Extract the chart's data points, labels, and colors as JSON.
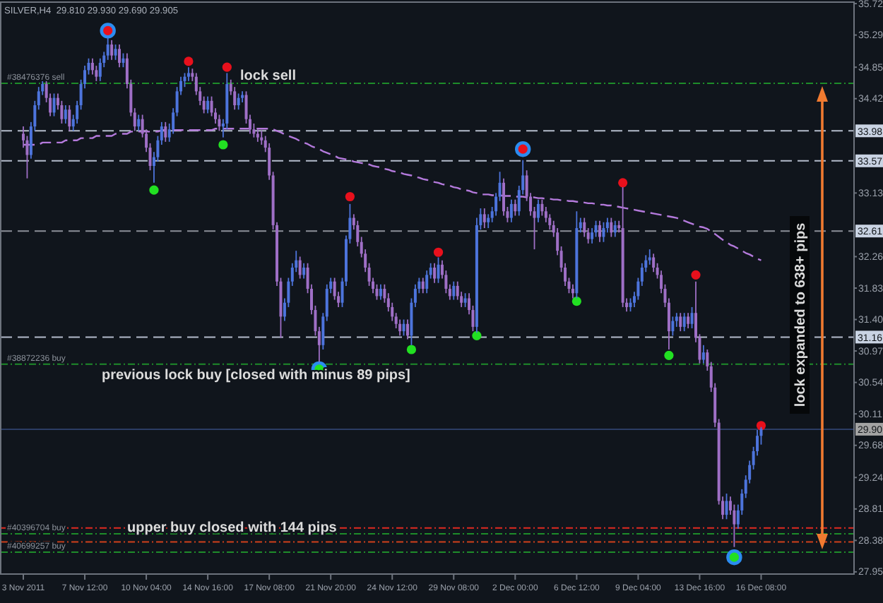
{
  "chart_data": {
    "type": "candlestick",
    "title": "SILVER,H4  29.810 29.930 29.690 29.905",
    "categories": [
      "3 Nov 2011",
      null,
      null,
      null,
      null,
      null,
      null,
      null,
      null,
      null,
      null,
      null,
      null,
      null,
      null,
      null,
      "7 Nov 12:00",
      null,
      null,
      null,
      null,
      null,
      null,
      null,
      null,
      null,
      null,
      null,
      null,
      null,
      null,
      null,
      "10 Nov 04:00",
      null,
      null,
      null,
      null,
      null,
      null,
      null,
      null,
      null,
      null,
      null,
      null,
      null,
      null,
      null,
      "14 Nov 16:00",
      null,
      null,
      null,
      null,
      null,
      null,
      null,
      null,
      null,
      null,
      null,
      null,
      null,
      null,
      null,
      "17 Nov 08:00",
      null,
      null,
      null,
      null,
      null,
      null,
      null,
      null,
      null,
      null,
      null,
      null,
      null,
      null,
      null,
      "21 Nov 20:00",
      null,
      null,
      null,
      null,
      null,
      null,
      null,
      null,
      null,
      null,
      null,
      null,
      null,
      null,
      null,
      "24 Nov 12:00",
      null,
      null,
      null,
      null,
      null,
      null,
      null,
      null,
      null,
      null,
      null,
      null,
      null,
      null,
      null,
      "29 Nov 08:00",
      null,
      null,
      null,
      null,
      null,
      null,
      null,
      null,
      null,
      null,
      null,
      null,
      null,
      null,
      null,
      "2 Dec 00:00",
      null,
      null,
      null,
      null,
      null,
      null,
      null,
      null,
      null,
      null,
      null,
      null,
      null,
      null,
      null,
      "6 Dec 12:00",
      null,
      null,
      null,
      null,
      null,
      null,
      null,
      null,
      null,
      null,
      null,
      null,
      null,
      null,
      null,
      "9 Dec 04:00",
      null,
      null,
      null,
      null,
      null,
      null,
      null,
      null,
      null,
      null,
      null,
      null,
      null,
      null,
      null,
      "13 Dec 16:00",
      null,
      null,
      null,
      null,
      null,
      null,
      null,
      null,
      null,
      null,
      null,
      null,
      null,
      null,
      null,
      "16 Dec 08:00"
    ],
    "ohlc": [
      [
        33.94,
        34.04,
        33.75,
        33.85
      ],
      [
        33.85,
        33.91,
        33.33,
        33.65
      ],
      [
        33.65,
        34.1,
        33.6,
        34.04
      ],
      [
        34.04,
        34.39,
        33.98,
        34.33
      ],
      [
        34.33,
        34.58,
        34.27,
        34.52
      ],
      [
        34.52,
        34.68,
        34.47,
        34.62
      ],
      [
        34.62,
        34.68,
        34.37,
        34.43
      ],
      [
        34.43,
        34.49,
        34.18,
        34.23
      ],
      [
        34.23,
        34.49,
        34.18,
        34.43
      ],
      [
        34.43,
        34.49,
        34.27,
        34.33
      ],
      [
        34.33,
        34.39,
        34.08,
        34.14
      ],
      [
        34.14,
        34.33,
        34.08,
        34.27
      ],
      [
        34.27,
        34.33,
        33.98,
        34.04
      ],
      [
        34.04,
        34.2,
        33.98,
        34.14
      ],
      [
        34.14,
        34.39,
        34.08,
        34.33
      ],
      [
        34.33,
        34.68,
        34.27,
        34.62
      ],
      [
        34.62,
        34.87,
        34.56,
        34.81
      ],
      [
        34.81,
        34.97,
        34.75,
        34.91
      ],
      [
        34.91,
        34.97,
        34.75,
        34.81
      ],
      [
        34.81,
        34.87,
        34.66,
        34.72
      ],
      [
        34.72,
        34.97,
        34.66,
        34.91
      ],
      [
        34.91,
        35.06,
        34.85,
        35.01
      ],
      [
        35.01,
        35.26,
        34.95,
        35.16
      ],
      [
        35.16,
        35.22,
        34.95,
        35.01
      ],
      [
        35.01,
        35.16,
        34.95,
        35.1
      ],
      [
        35.1,
        35.16,
        34.85,
        34.91
      ],
      [
        34.91,
        35.04,
        34.85,
        34.97
      ],
      [
        34.97,
        35.04,
        34.56,
        34.62
      ],
      [
        34.62,
        34.68,
        34.18,
        34.23
      ],
      [
        34.23,
        34.29,
        33.98,
        34.04
      ],
      [
        34.04,
        34.2,
        33.98,
        34.14
      ],
      [
        34.14,
        34.2,
        33.89,
        33.94
      ],
      [
        33.94,
        34.0,
        33.69,
        33.75
      ],
      [
        33.75,
        33.81,
        33.44,
        33.5
      ],
      [
        33.5,
        33.69,
        33.27,
        33.62
      ],
      [
        33.62,
        33.91,
        33.56,
        33.85
      ],
      [
        33.85,
        34.1,
        33.79,
        34.04
      ],
      [
        34.04,
        34.1,
        33.83,
        33.89
      ],
      [
        33.89,
        34.08,
        33.83,
        34.0
      ],
      [
        34.0,
        34.29,
        33.94,
        34.23
      ],
      [
        34.23,
        34.58,
        34.18,
        34.52
      ],
      [
        34.52,
        34.72,
        34.47,
        34.66
      ],
      [
        34.66,
        34.77,
        34.58,
        34.72
      ],
      [
        34.72,
        34.85,
        34.66,
        34.77
      ],
      [
        34.77,
        34.83,
        34.66,
        34.72
      ],
      [
        34.72,
        34.77,
        34.47,
        34.52
      ],
      [
        34.52,
        34.58,
        34.33,
        34.39
      ],
      [
        34.39,
        34.45,
        34.22,
        34.27
      ],
      [
        34.27,
        34.45,
        34.22,
        34.39
      ],
      [
        34.39,
        34.45,
        34.18,
        34.23
      ],
      [
        34.23,
        34.29,
        34.08,
        34.14
      ],
      [
        34.14,
        34.2,
        33.98,
        34.04
      ],
      [
        34.04,
        34.14,
        33.89,
        34.08
      ],
      [
        34.08,
        34.77,
        34.0,
        34.62
      ],
      [
        34.62,
        34.68,
        34.47,
        34.52
      ],
      [
        34.52,
        34.58,
        34.27,
        34.33
      ],
      [
        34.33,
        34.49,
        34.27,
        34.43
      ],
      [
        34.43,
        34.52,
        34.37,
        34.47
      ],
      [
        34.47,
        34.52,
        34.08,
        34.14
      ],
      [
        34.14,
        34.2,
        33.94,
        34.0
      ],
      [
        34.0,
        34.08,
        33.89,
        33.94
      ],
      [
        33.94,
        34.0,
        33.83,
        33.89
      ],
      [
        33.89,
        33.98,
        33.79,
        33.85
      ],
      [
        33.85,
        33.91,
        33.69,
        33.75
      ],
      [
        33.75,
        33.81,
        33.31,
        33.37
      ],
      [
        33.37,
        33.42,
        32.63,
        32.69
      ],
      [
        32.69,
        32.73,
        31.86,
        31.92
      ],
      [
        31.92,
        31.97,
        31.15,
        31.44
      ],
      [
        31.44,
        31.69,
        31.38,
        31.63
      ],
      [
        31.63,
        31.97,
        31.57,
        31.92
      ],
      [
        31.92,
        32.17,
        31.86,
        32.11
      ],
      [
        32.11,
        32.34,
        32.05,
        32.21
      ],
      [
        32.21,
        32.26,
        31.96,
        32.01
      ],
      [
        32.01,
        32.17,
        31.96,
        32.11
      ],
      [
        32.11,
        32.17,
        31.76,
        31.82
      ],
      [
        31.82,
        31.88,
        31.47,
        31.53
      ],
      [
        31.53,
        31.59,
        31.18,
        31.24
      ],
      [
        31.24,
        31.3,
        30.82,
        31.05
      ],
      [
        31.05,
        31.49,
        30.99,
        31.44
      ],
      [
        31.44,
        31.88,
        31.38,
        31.82
      ],
      [
        31.82,
        31.97,
        31.76,
        31.92
      ],
      [
        31.92,
        31.97,
        31.67,
        31.72
      ],
      [
        31.72,
        31.78,
        31.57,
        31.63
      ],
      [
        31.63,
        31.97,
        31.57,
        31.92
      ],
      [
        31.92,
        32.55,
        31.86,
        32.5
      ],
      [
        32.5,
        32.98,
        32.44,
        32.79
      ],
      [
        32.79,
        32.84,
        32.63,
        32.69
      ],
      [
        32.69,
        32.75,
        32.4,
        32.46
      ],
      [
        32.46,
        32.53,
        32.25,
        32.3
      ],
      [
        32.3,
        32.36,
        32.05,
        32.11
      ],
      [
        32.11,
        32.17,
        31.86,
        31.92
      ],
      [
        31.92,
        31.97,
        31.76,
        31.82
      ],
      [
        31.82,
        31.88,
        31.67,
        31.72
      ],
      [
        31.72,
        31.88,
        31.67,
        31.82
      ],
      [
        31.82,
        31.88,
        31.63,
        31.69
      ],
      [
        31.69,
        31.76,
        31.51,
        31.57
      ],
      [
        31.57,
        31.63,
        31.38,
        31.44
      ],
      [
        31.44,
        31.49,
        31.28,
        31.34
      ],
      [
        31.34,
        31.4,
        31.18,
        31.24
      ],
      [
        31.24,
        31.4,
        31.18,
        31.34
      ],
      [
        31.34,
        31.4,
        31.13,
        31.18
      ],
      [
        31.18,
        31.69,
        31.05,
        31.63
      ],
      [
        31.63,
        31.88,
        31.57,
        31.82
      ],
      [
        31.82,
        31.97,
        31.76,
        31.92
      ],
      [
        31.92,
        31.97,
        31.76,
        31.82
      ],
      [
        31.82,
        32.07,
        31.76,
        32.01
      ],
      [
        32.01,
        32.17,
        31.96,
        32.11
      ],
      [
        32.11,
        32.17,
        31.9,
        31.96
      ],
      [
        31.96,
        32.25,
        31.9,
        32.15
      ],
      [
        32.15,
        32.21,
        31.96,
        32.01
      ],
      [
        32.01,
        32.07,
        31.76,
        31.82
      ],
      [
        31.82,
        31.88,
        31.67,
        31.72
      ],
      [
        31.72,
        31.92,
        31.67,
        31.86
      ],
      [
        31.86,
        31.92,
        31.67,
        31.72
      ],
      [
        31.72,
        31.78,
        31.57,
        31.63
      ],
      [
        31.63,
        31.76,
        31.57,
        31.69
      ],
      [
        31.69,
        31.76,
        31.47,
        31.53
      ],
      [
        31.53,
        31.59,
        31.24,
        31.3
      ],
      [
        31.3,
        32.79,
        31.22,
        32.69
      ],
      [
        32.69,
        32.92,
        32.63,
        32.84
      ],
      [
        32.84,
        32.92,
        32.65,
        32.73
      ],
      [
        32.73,
        32.84,
        32.65,
        32.79
      ],
      [
        32.79,
        32.94,
        32.73,
        32.88
      ],
      [
        32.88,
        33.13,
        32.82,
        33.08
      ],
      [
        33.08,
        33.42,
        33.02,
        33.27
      ],
      [
        33.27,
        33.33,
        32.82,
        32.88
      ],
      [
        32.88,
        32.94,
        32.73,
        32.79
      ],
      [
        32.79,
        33.04,
        32.73,
        32.98
      ],
      [
        32.98,
        33.04,
        32.82,
        32.88
      ],
      [
        32.88,
        33.23,
        32.82,
        33.17
      ],
      [
        33.17,
        33.58,
        33.11,
        33.37
      ],
      [
        33.37,
        33.44,
        33.02,
        33.08
      ],
      [
        33.08,
        33.13,
        32.82,
        32.88
      ],
      [
        32.88,
        32.94,
        32.36,
        32.79
      ],
      [
        32.79,
        33.04,
        32.73,
        32.98
      ],
      [
        32.98,
        33.04,
        32.82,
        32.88
      ],
      [
        32.88,
        32.94,
        32.73,
        32.79
      ],
      [
        32.79,
        32.84,
        32.63,
        32.69
      ],
      [
        32.69,
        32.75,
        32.53,
        32.59
      ],
      [
        32.59,
        32.65,
        32.28,
        32.34
      ],
      [
        32.34,
        32.4,
        32.05,
        32.11
      ],
      [
        32.11,
        32.17,
        31.86,
        31.92
      ],
      [
        31.92,
        31.97,
        31.76,
        31.82
      ],
      [
        31.82,
        31.88,
        31.69,
        31.76
      ],
      [
        31.76,
        32.88,
        31.69,
        32.65
      ],
      [
        32.65,
        32.79,
        32.59,
        32.73
      ],
      [
        32.73,
        32.79,
        32.53,
        32.59
      ],
      [
        32.59,
        32.65,
        32.44,
        32.5
      ],
      [
        32.5,
        32.65,
        32.44,
        32.59
      ],
      [
        32.59,
        32.75,
        32.53,
        32.69
      ],
      [
        32.69,
        32.75,
        32.46,
        32.53
      ],
      [
        32.53,
        32.73,
        32.46,
        32.65
      ],
      [
        32.65,
        32.79,
        32.59,
        32.73
      ],
      [
        32.73,
        32.79,
        32.53,
        32.59
      ],
      [
        32.59,
        32.75,
        32.53,
        32.69
      ],
      [
        32.69,
        32.75,
        32.59,
        32.65
      ],
      [
        32.65,
        33.21,
        31.57,
        31.63
      ],
      [
        31.63,
        31.69,
        31.51,
        31.57
      ],
      [
        31.57,
        31.69,
        31.51,
        31.63
      ],
      [
        31.63,
        31.78,
        31.57,
        31.72
      ],
      [
        31.72,
        31.97,
        31.67,
        31.92
      ],
      [
        31.92,
        32.17,
        31.86,
        32.11
      ],
      [
        32.11,
        32.28,
        32.05,
        32.21
      ],
      [
        32.21,
        32.36,
        32.15,
        32.25
      ],
      [
        32.25,
        32.3,
        32.05,
        32.11
      ],
      [
        32.11,
        32.17,
        31.96,
        32.01
      ],
      [
        32.01,
        32.07,
        31.76,
        31.82
      ],
      [
        31.82,
        31.88,
        31.57,
        31.63
      ],
      [
        31.63,
        31.69,
        30.99,
        31.24
      ],
      [
        31.24,
        31.44,
        31.18,
        31.38
      ],
      [
        31.38,
        31.49,
        31.3,
        31.44
      ],
      [
        31.44,
        31.49,
        31.24,
        31.3
      ],
      [
        31.3,
        31.49,
        31.24,
        31.44
      ],
      [
        31.44,
        31.49,
        31.28,
        31.34
      ],
      [
        31.34,
        31.57,
        31.28,
        31.49
      ],
      [
        31.49,
        31.92,
        31.09,
        31.15
      ],
      [
        31.15,
        31.2,
        30.8,
        30.85
      ],
      [
        30.85,
        31.05,
        30.8,
        30.95
      ],
      [
        30.95,
        30.99,
        30.7,
        30.76
      ],
      [
        30.76,
        30.82,
        30.41,
        30.47
      ],
      [
        30.47,
        30.53,
        29.93,
        29.99
      ],
      [
        29.99,
        30.04,
        28.87,
        28.92
      ],
      [
        28.92,
        28.98,
        28.67,
        28.73
      ],
      [
        28.73,
        29.02,
        28.67,
        28.92
      ],
      [
        28.92,
        28.98,
        28.73,
        28.79
      ],
      [
        28.79,
        28.87,
        28.29,
        28.6
      ],
      [
        28.6,
        28.87,
        28.54,
        28.79
      ],
      [
        28.79,
        29.08,
        28.73,
        29.02
      ],
      [
        29.02,
        29.27,
        28.96,
        29.21
      ],
      [
        29.21,
        29.47,
        29.16,
        29.41
      ],
      [
        29.41,
        29.66,
        29.35,
        29.6
      ],
      [
        29.6,
        29.89,
        29.54,
        29.81
      ],
      [
        29.81,
        29.93,
        29.69,
        29.905
      ]
    ],
    "colors": [
      "#9f6fc6",
      "#9f6fc6",
      "#4d74dc",
      "#4d74dc",
      "#4d74dc",
      "#4d74dc",
      "#9f6fc6",
      "#9f6fc6",
      "#4d74dc",
      "#9f6fc6",
      "#9f6fc6",
      "#4d74dc",
      "#9f6fc6",
      "#4d74dc",
      "#4d74dc",
      "#4d74dc",
      "#4d74dc",
      "#4d74dc",
      "#9f6fc6",
      "#9f6fc6",
      "#4d74dc",
      "#4d74dc",
      "#4d74dc",
      "#9f6fc6",
      "#4d74dc",
      "#9f6fc6",
      "#4d74dc",
      "#9f6fc6",
      "#9f6fc6",
      "#9f6fc6",
      "#4d74dc",
      "#9f6fc6",
      "#9f6fc6",
      "#9f6fc6",
      "#4d74dc",
      "#4d74dc",
      "#4d74dc",
      "#9f6fc6",
      "#4d74dc",
      "#4d74dc",
      "#4d74dc",
      "#4d74dc",
      "#4d74dc",
      "#4d74dc",
      "#9f6fc6",
      "#9f6fc6",
      "#9f6fc6",
      "#9f6fc6",
      "#4d74dc",
      "#9f6fc6",
      "#9f6fc6",
      "#9f6fc6",
      "#4d74dc",
      "#4d74dc",
      "#9f6fc6",
      "#9f6fc6",
      "#4d74dc",
      "#4d74dc",
      "#9f6fc6",
      "#9f6fc6",
      "#9f6fc6",
      "#9f6fc6",
      "#9f6fc6",
      "#9f6fc6",
      "#9f6fc6",
      "#9f6fc6",
      "#9f6fc6",
      "#9f6fc6",
      "#4d74dc",
      "#4d74dc",
      "#4d74dc",
      "#4d74dc",
      "#9f6fc6",
      "#4d74dc",
      "#9f6fc6",
      "#9f6fc6",
      "#9f6fc6",
      "#9f6fc6",
      "#4d74dc",
      "#4d74dc",
      "#4d74dc",
      "#9f6fc6",
      "#9f6fc6",
      "#4d74dc",
      "#4d74dc",
      "#4d74dc",
      "#9f6fc6",
      "#9f6fc6",
      "#9f6fc6",
      "#9f6fc6",
      "#9f6fc6",
      "#9f6fc6",
      "#9f6fc6",
      "#4d74dc",
      "#9f6fc6",
      "#9f6fc6",
      "#9f6fc6",
      "#9f6fc6",
      "#9f6fc6",
      "#4d74dc",
      "#9f6fc6",
      "#4d74dc",
      "#4d74dc",
      "#4d74dc",
      "#9f6fc6",
      "#4d74dc",
      "#4d74dc",
      "#9f6fc6",
      "#4d74dc",
      "#9f6fc6",
      "#9f6fc6",
      "#9f6fc6",
      "#4d74dc",
      "#9f6fc6",
      "#9f6fc6",
      "#4d74dc",
      "#9f6fc6",
      "#9f6fc6",
      "#4d74dc",
      "#4d74dc",
      "#9f6fc6",
      "#4d74dc",
      "#4d74dc",
      "#4d74dc",
      "#4d74dc",
      "#9f6fc6",
      "#9f6fc6",
      "#4d74dc",
      "#9f6fc6",
      "#4d74dc",
      "#4d74dc",
      "#9f6fc6",
      "#9f6fc6",
      "#9f6fc6",
      "#4d74dc",
      "#9f6fc6",
      "#9f6fc6",
      "#9f6fc6",
      "#9f6fc6",
      "#9f6fc6",
      "#9f6fc6",
      "#9f6fc6",
      "#9f6fc6",
      "#9f6fc6",
      "#4d74dc",
      "#4d74dc",
      "#9f6fc6",
      "#9f6fc6",
      "#4d74dc",
      "#4d74dc",
      "#9f6fc6",
      "#4d74dc",
      "#4d74dc",
      "#9f6fc6",
      "#4d74dc",
      "#9f6fc6",
      "#9f6fc6",
      "#9f6fc6",
      "#4d74dc",
      "#4d74dc",
      "#4d74dc",
      "#4d74dc",
      "#4d74dc",
      "#4d74dc",
      "#9f6fc6",
      "#9f6fc6",
      "#9f6fc6",
      "#9f6fc6",
      "#9f6fc6",
      "#4d74dc",
      "#4d74dc",
      "#9f6fc6",
      "#4d74dc",
      "#9f6fc6",
      "#4d74dc",
      "#9f6fc6",
      "#9f6fc6",
      "#4d74dc",
      "#9f6fc6",
      "#9f6fc6",
      "#9f6fc6",
      "#9f6fc6",
      "#9f6fc6",
      "#4d74dc",
      "#9f6fc6",
      "#9f6fc6",
      "#4d74dc",
      "#4d74dc",
      "#4d74dc",
      "#4d74dc",
      "#4d74dc",
      "#4d74dc",
      "#4d74dc"
    ],
    "series": [
      {
        "type": "line",
        "color": "#b47adc",
        "marker": "none",
        "values": [
          33.79,
          33.79,
          33.79,
          33.79,
          33.79,
          33.82,
          33.82,
          33.82,
          33.82,
          33.82,
          33.82,
          33.85,
          33.85,
          33.85,
          33.85,
          33.88,
          33.88,
          33.88,
          33.88,
          33.91,
          33.91,
          33.91,
          33.91,
          33.91,
          33.94,
          33.94,
          33.94,
          33.94,
          33.97,
          33.97,
          33.97,
          33.97,
          33.97,
          33.97,
          33.97,
          33.97,
          33.99,
          33.99,
          33.99,
          33.99,
          33.99,
          33.99,
          33.99,
          33.99,
          33.99,
          33.99,
          33.99,
          33.99,
          33.99,
          33.99,
          34.01,
          34.01,
          34.01,
          34.01,
          34.01,
          34.01,
          34.01,
          34.01,
          34.01,
          34.01,
          34.01,
          34.01,
          34.01,
          34.01,
          34.01,
          34.0,
          33.98,
          33.96,
          33.93,
          33.91,
          33.89,
          33.87,
          33.84,
          33.82,
          33.8,
          33.77,
          33.75,
          33.73,
          33.7,
          33.68,
          33.66,
          33.64,
          33.61,
          33.6,
          33.59,
          33.58,
          33.56,
          33.55,
          33.54,
          33.53,
          33.52,
          33.5,
          33.49,
          33.48,
          33.46,
          33.45,
          33.43,
          33.42,
          33.41,
          33.39,
          33.38,
          33.37,
          33.35,
          33.34,
          33.32,
          33.31,
          33.3,
          33.28,
          33.27,
          33.25,
          33.24,
          33.23,
          33.21,
          33.2,
          33.18,
          33.17,
          33.16,
          33.14,
          33.13,
          33.11,
          33.11,
          33.11,
          33.1,
          33.1,
          33.1,
          33.09,
          33.09,
          33.09,
          33.08,
          33.08,
          33.08,
          33.07,
          33.07,
          33.07,
          33.06,
          33.06,
          33.05,
          33.05,
          33.04,
          33.04,
          33.03,
          33.03,
          33.02,
          33.02,
          33.01,
          33.01,
          33.0,
          32.99,
          32.99,
          32.98,
          32.97,
          32.97,
          32.96,
          32.96,
          32.95,
          32.94,
          32.93,
          32.92,
          32.91,
          32.9,
          32.89,
          32.88,
          32.87,
          32.86,
          32.85,
          32.84,
          32.83,
          32.82,
          32.81,
          32.8,
          32.79,
          32.77,
          32.75,
          32.73,
          32.71,
          32.69,
          32.67,
          32.66,
          32.64,
          32.6,
          32.57,
          32.53,
          32.49,
          32.46,
          32.42,
          32.4,
          32.37,
          32.34,
          32.31,
          32.29,
          32.26,
          32.23,
          32.21
        ]
      },
      {
        "type": "scatter",
        "color": "#2b8cf0",
        "values": [
          null,
          null,
          null,
          null,
          null,
          null,
          null,
          null,
          null,
          null,
          null,
          null,
          null,
          null,
          null,
          null,
          null,
          null,
          null,
          null,
          null,
          null,
          35.35,
          null,
          null,
          null,
          null,
          null,
          null,
          null,
          null,
          null,
          null,
          null,
          null,
          null,
          null,
          null,
          null,
          null,
          null,
          null,
          null,
          null,
          null,
          null,
          null,
          null,
          null,
          null,
          null,
          null,
          null,
          null,
          null,
          null,
          null,
          null,
          null,
          null,
          null,
          null,
          null,
          null,
          null,
          null,
          null,
          null,
          null,
          null,
          null,
          null,
          null,
          null,
          null,
          null,
          null,
          30.72,
          null,
          null,
          null,
          null,
          null,
          null,
          null,
          null,
          null,
          null,
          null,
          null,
          null,
          null,
          null,
          null,
          null,
          null,
          null,
          null,
          null,
          null,
          null,
          null,
          null,
          null,
          null,
          null,
          null,
          null,
          null,
          null,
          null,
          null,
          null,
          null,
          null,
          null,
          null,
          null,
          null,
          null,
          null,
          null,
          null,
          null,
          null,
          null,
          null,
          null,
          null,
          null,
          33.73,
          null,
          null,
          null,
          null,
          null,
          null,
          null,
          null,
          null,
          null,
          null,
          null,
          null,
          null,
          null,
          null,
          null,
          null,
          null,
          null,
          null,
          null,
          null,
          null,
          null,
          null,
          null,
          null,
          null,
          null,
          null,
          null,
          null,
          null,
          null,
          null,
          null,
          null,
          null,
          null,
          null,
          null,
          null,
          null,
          null,
          null,
          null,
          null,
          null,
          null,
          null,
          null,
          null,
          null,
          28.15,
          null,
          null,
          null,
          null,
          null,
          null,
          null
        ]
      },
      {
        "type": "scatter",
        "color": "#e8101c",
        "values": [
          null,
          null,
          null,
          null,
          null,
          null,
          null,
          null,
          null,
          null,
          null,
          null,
          null,
          null,
          null,
          null,
          null,
          null,
          null,
          null,
          null,
          null,
          35.35,
          null,
          null,
          null,
          null,
          null,
          null,
          null,
          null,
          null,
          null,
          null,
          null,
          null,
          null,
          null,
          null,
          null,
          null,
          null,
          null,
          34.93,
          null,
          null,
          null,
          null,
          null,
          null,
          null,
          null,
          null,
          34.85,
          null,
          null,
          null,
          null,
          null,
          null,
          null,
          null,
          null,
          null,
          null,
          null,
          null,
          null,
          null,
          null,
          null,
          null,
          null,
          null,
          null,
          null,
          null,
          null,
          null,
          null,
          null,
          null,
          null,
          null,
          null,
          33.08,
          null,
          null,
          null,
          null,
          null,
          null,
          null,
          null,
          null,
          null,
          null,
          null,
          null,
          null,
          null,
          null,
          null,
          null,
          null,
          null,
          null,
          null,
          32.32,
          null,
          null,
          null,
          null,
          null,
          null,
          null,
          null,
          null,
          null,
          null,
          null,
          null,
          null,
          null,
          null,
          null,
          null,
          null,
          null,
          null,
          33.73,
          null,
          null,
          null,
          null,
          null,
          null,
          null,
          null,
          null,
          null,
          null,
          null,
          null,
          null,
          null,
          null,
          null,
          null,
          null,
          null,
          null,
          null,
          null,
          null,
          null,
          33.27,
          null,
          null,
          null,
          null,
          null,
          null,
          null,
          null,
          null,
          null,
          null,
          null,
          null,
          null,
          null,
          null,
          null,
          null,
          32.01,
          null,
          null,
          null,
          null,
          null,
          null,
          null,
          null,
          null,
          null,
          null,
          null,
          null,
          null,
          null,
          null,
          29.95
        ]
      },
      {
        "type": "scatter",
        "color": "#22e022",
        "values": [
          null,
          null,
          null,
          null,
          null,
          null,
          null,
          null,
          null,
          null,
          null,
          null,
          null,
          null,
          null,
          null,
          null,
          null,
          null,
          null,
          null,
          null,
          null,
          null,
          null,
          null,
          null,
          null,
          null,
          null,
          null,
          null,
          null,
          null,
          33.17,
          null,
          null,
          null,
          null,
          null,
          null,
          null,
          null,
          null,
          null,
          null,
          null,
          null,
          null,
          null,
          null,
          null,
          33.79,
          null,
          null,
          null,
          null,
          null,
          null,
          null,
          null,
          null,
          null,
          null,
          null,
          null,
          null,
          null,
          null,
          null,
          null,
          null,
          null,
          null,
          null,
          null,
          null,
          30.72,
          null,
          null,
          null,
          null,
          null,
          null,
          null,
          null,
          null,
          null,
          null,
          null,
          null,
          null,
          null,
          null,
          null,
          null,
          null,
          null,
          null,
          null,
          null,
          30.99,
          null,
          null,
          null,
          null,
          null,
          null,
          null,
          null,
          null,
          null,
          null,
          null,
          null,
          null,
          null,
          null,
          31.18,
          null,
          null,
          null,
          null,
          null,
          null,
          null,
          null,
          null,
          null,
          null,
          null,
          null,
          null,
          null,
          null,
          null,
          null,
          null,
          null,
          null,
          null,
          null,
          null,
          null,
          31.65,
          null,
          null,
          null,
          null,
          null,
          null,
          null,
          null,
          null,
          null,
          null,
          null,
          null,
          null,
          null,
          null,
          null,
          null,
          null,
          null,
          null,
          null,
          null,
          30.91,
          null,
          null,
          null,
          null,
          null,
          null,
          null,
          null,
          null,
          null,
          null,
          null,
          null,
          null,
          null,
          null,
          28.15,
          null,
          null,
          null,
          null,
          null,
          null,
          null
        ]
      }
    ],
    "ylim": [
      27.92,
      35.74
    ],
    "yticks": [
      35.72,
      35.29,
      34.85,
      34.42,
      33.13,
      32.26,
      31.83,
      {
        "value": 31.4,
        "label": "31.40"
      },
      30.97,
      30.54,
      30.11,
      29.68,
      29.24,
      28.81,
      28.38,
      27.95
    ],
    "ref_lines": [
      {
        "axis": "y",
        "value": 34.63,
        "label": "#38476376 sell",
        "color": "#1e8c2a",
        "line_style": "dotted"
      },
      {
        "axis": "y",
        "value": 33.98,
        "label": "33.98",
        "color": "#b4bccb",
        "line_style": "dashed"
      },
      {
        "axis": "y",
        "value": 33.57,
        "label": "33.57",
        "color": "#b4bccb",
        "line_style": "dashed"
      },
      {
        "axis": "y",
        "value": 32.61,
        "label": "32.61",
        "color": "#8c9099",
        "line_style": "dashed"
      },
      {
        "axis": "y",
        "value": 31.16,
        "label": "31.16",
        "color": "#b4bccb",
        "line_style": "dashed"
      },
      {
        "axis": "y",
        "value": 30.79,
        "label": "#38872236 buy",
        "color": "#1e8c2a",
        "line_style": "dotted"
      },
      {
        "axis": "y",
        "value": 29.9,
        "label": "29.90",
        "color": "#2c3c64",
        "line_style": "solid"
      },
      {
        "axis": "y",
        "value": 28.55,
        "color": "#e02a20",
        "line_style": "dotted"
      },
      {
        "axis": "y",
        "value": 28.47,
        "label": "#40396704 buy",
        "color": "#1e8c2a",
        "line_style": "dotted"
      },
      {
        "axis": "y",
        "value": 28.36,
        "color": "#d0401a",
        "line_style": "dotted"
      },
      {
        "axis": "y",
        "value": 28.22,
        "label": "#40699257 buy",
        "color": "#1e8c2a",
        "line_style": "dotted"
      }
    ],
    "annotations": [
      "lock sell",
      "previous lock buy [closed with minus 89 pips]",
      "upper buy closed with 144 pips",
      "lock expanded to 638+ pips"
    ],
    "line_style": "dashed",
    "marker": "circle"
  }
}
